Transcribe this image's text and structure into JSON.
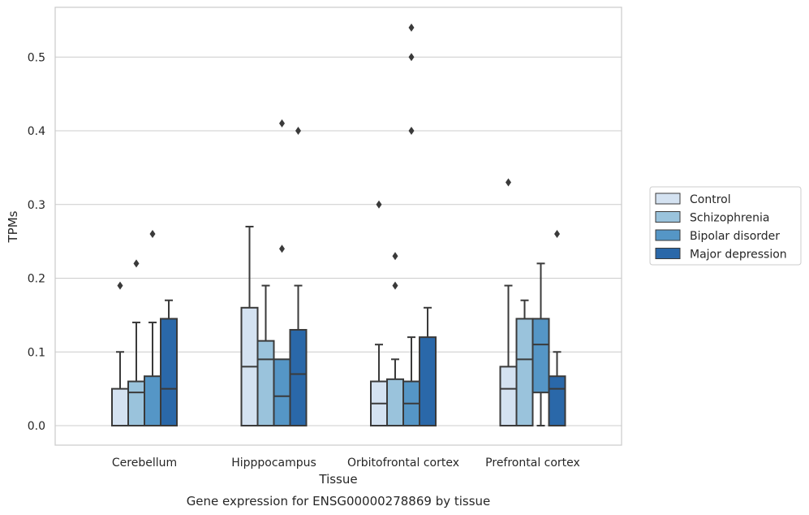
{
  "chart_data": {
    "type": "boxplot",
    "caption": "Gene expression for ENSG00000278869 by tissue",
    "xlabel": "Tissue",
    "ylabel": "TPMs",
    "ylim": [
      -0.026,
      0.568
    ],
    "yticks": [
      0.0,
      0.1,
      0.2,
      0.3,
      0.4,
      0.5
    ],
    "ytick_labels": [
      "0.0",
      "0.1",
      "0.2",
      "0.3",
      "0.4",
      "0.5"
    ],
    "grid": true,
    "legend_position": "right",
    "categories": [
      "Cerebellum",
      "Hipppocampus",
      "Orbitofrontal cortex",
      "Prefrontal cortex"
    ],
    "series": [
      {
        "name": "Control",
        "color": "#d4e2f1",
        "boxes": [
          {
            "low": 0.0,
            "q1": 0.0,
            "median": 0.0,
            "q3": 0.05,
            "high": 0.1,
            "outliers": [
              0.19
            ]
          },
          {
            "low": 0.0,
            "q1": 0.0,
            "median": 0.08,
            "q3": 0.16,
            "high": 0.27,
            "outliers": []
          },
          {
            "low": 0.0,
            "q1": 0.0,
            "median": 0.03,
            "q3": 0.06,
            "high": 0.11,
            "outliers": [
              0.3
            ]
          },
          {
            "low": 0.0,
            "q1": 0.0,
            "median": 0.05,
            "q3": 0.08,
            "high": 0.19,
            "outliers": [
              0.33
            ]
          }
        ]
      },
      {
        "name": "Schizophrenia",
        "color": "#9ac3dc",
        "boxes": [
          {
            "low": 0.0,
            "q1": 0.0,
            "median": 0.045,
            "q3": 0.06,
            "high": 0.14,
            "outliers": [
              0.22
            ]
          },
          {
            "low": 0.0,
            "q1": 0.0,
            "median": 0.09,
            "q3": 0.115,
            "high": 0.19,
            "outliers": []
          },
          {
            "low": 0.0,
            "q1": 0.0,
            "median": 0.0,
            "q3": 0.063,
            "high": 0.09,
            "outliers": [
              0.23,
              0.19
            ]
          },
          {
            "low": 0.0,
            "q1": 0.0,
            "median": 0.09,
            "q3": 0.145,
            "high": 0.17,
            "outliers": []
          }
        ]
      },
      {
        "name": "Bipolar disorder",
        "color": "#5596c6",
        "boxes": [
          {
            "low": 0.0,
            "q1": 0.0,
            "median": 0.0,
            "q3": 0.067,
            "high": 0.14,
            "outliers": [
              0.26
            ]
          },
          {
            "low": 0.0,
            "q1": 0.0,
            "median": 0.04,
            "q3": 0.09,
            "high": 0.09,
            "outliers": [
              0.41,
              0.24
            ]
          },
          {
            "low": 0.0,
            "q1": 0.0,
            "median": 0.03,
            "q3": 0.06,
            "high": 0.12,
            "outliers": [
              0.54,
              0.5,
              0.4
            ]
          },
          {
            "low": 0.0,
            "q1": 0.045,
            "median": 0.11,
            "q3": 0.145,
            "high": 0.22,
            "outliers": []
          }
        ]
      },
      {
        "name": "Major depression",
        "color": "#2a68a9",
        "boxes": [
          {
            "low": 0.0,
            "q1": 0.0,
            "median": 0.05,
            "q3": 0.145,
            "high": 0.17,
            "outliers": []
          },
          {
            "low": 0.0,
            "q1": 0.0,
            "median": 0.07,
            "q3": 0.13,
            "high": 0.19,
            "outliers": [
              0.4
            ]
          },
          {
            "low": 0.0,
            "q1": 0.0,
            "median": 0.0,
            "q3": 0.12,
            "high": 0.16,
            "outliers": []
          },
          {
            "low": 0.0,
            "q1": 0.0,
            "median": 0.05,
            "q3": 0.067,
            "high": 0.1,
            "outliers": [
              0.26
            ]
          }
        ]
      }
    ]
  }
}
